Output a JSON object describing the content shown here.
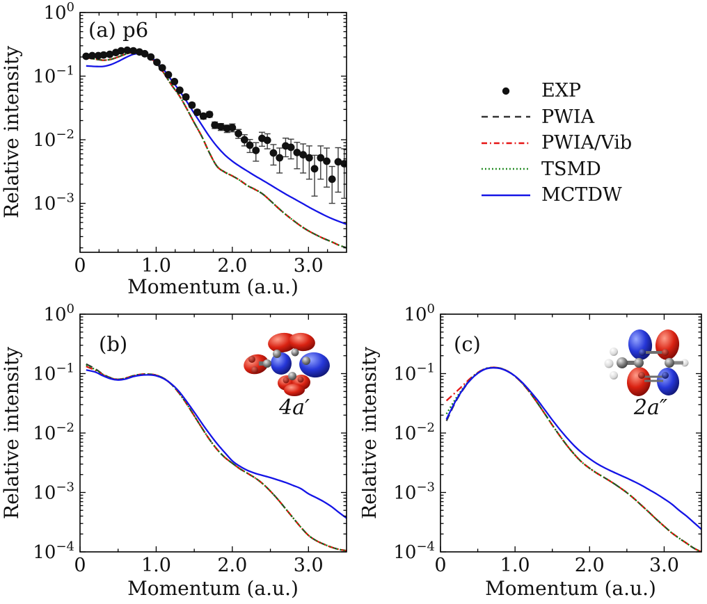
{
  "figure": {
    "background_color": "#ffffff",
    "legend": {
      "items": [
        {
          "label": "EXP",
          "marker": "circle",
          "color": "#111111"
        },
        {
          "label": "PWIA",
          "marker": "dashed",
          "color": "#333333"
        },
        {
          "label": "PWIA/Vib",
          "marker": "dashdot",
          "color": "#e61414"
        },
        {
          "label": "TSMD",
          "marker": "dotted",
          "color": "#128212"
        },
        {
          "label": "MCTDW",
          "marker": "solid",
          "color": "#1414e6"
        }
      ]
    }
  },
  "chart_data": [
    {
      "id": "a",
      "type": "line",
      "panel_label": "(a) p6",
      "xlabel": "Momentum (a.u.)",
      "ylabel": "Relative intensity",
      "xlim": [
        0,
        3.5
      ],
      "ylim": [
        0.00017,
        1.0
      ],
      "xticks": [
        0,
        1,
        2,
        3
      ],
      "xtick_labels": [
        "0",
        "1.0",
        "2.0",
        "3.0"
      ],
      "x_minor_step": 0.25,
      "ytick_exponents": [
        0,
        -1,
        -2,
        -3
      ],
      "grid": false,
      "theory_x": [
        0.08,
        0.2,
        0.3,
        0.4,
        0.5,
        0.6,
        0.7,
        0.8,
        0.9,
        1.0,
        1.1,
        1.2,
        1.3,
        1.4,
        1.5,
        1.6,
        1.7,
        1.8,
        1.9,
        2.0,
        2.1,
        2.2,
        2.3,
        2.4,
        2.5,
        2.6,
        2.7,
        2.8,
        2.9,
        3.0,
        3.1,
        3.2,
        3.3,
        3.4,
        3.5
      ],
      "series": [
        {
          "name": "PWIA",
          "style": "dashed",
          "color": "#333333",
          "y": [
            0.195,
            0.185,
            0.178,
            0.183,
            0.2,
            0.222,
            0.236,
            0.23,
            0.203,
            0.16,
            0.112,
            0.073,
            0.05,
            0.031,
            0.0185,
            0.0112,
            0.0062,
            0.0038,
            0.0031,
            0.0027,
            0.0023,
            0.0019,
            0.00165,
            0.0014,
            0.0011,
            0.00085,
            0.00067,
            0.00054,
            0.00044,
            0.00037,
            0.00032,
            0.00028,
            0.00025,
            0.00022,
            0.0002
          ]
        },
        {
          "name": "PWIA/Vib",
          "style": "dashdot",
          "color": "#e61414",
          "y": [
            0.195,
            0.185,
            0.178,
            0.183,
            0.2,
            0.222,
            0.236,
            0.23,
            0.203,
            0.16,
            0.112,
            0.073,
            0.05,
            0.031,
            0.0185,
            0.0112,
            0.0062,
            0.0038,
            0.0031,
            0.0027,
            0.0023,
            0.0019,
            0.00165,
            0.0014,
            0.0011,
            0.00085,
            0.00067,
            0.00054,
            0.00044,
            0.00037,
            0.00032,
            0.00028,
            0.00025,
            0.00022,
            0.0002
          ]
        },
        {
          "name": "TSMD",
          "style": "dotted",
          "color": "#128212",
          "y": [
            0.195,
            0.185,
            0.178,
            0.183,
            0.2,
            0.222,
            0.236,
            0.23,
            0.203,
            0.16,
            0.112,
            0.073,
            0.05,
            0.031,
            0.0185,
            0.0112,
            0.0062,
            0.0038,
            0.0031,
            0.0027,
            0.0023,
            0.0019,
            0.00165,
            0.0014,
            0.0011,
            0.00085,
            0.00067,
            0.00054,
            0.00044,
            0.00037,
            0.00032,
            0.00028,
            0.00025,
            0.00022,
            0.0002
          ]
        },
        {
          "name": "MCTDW",
          "style": "solid",
          "color": "#1414e6",
          "y": [
            0.145,
            0.142,
            0.142,
            0.151,
            0.17,
            0.196,
            0.22,
            0.228,
            0.208,
            0.17,
            0.126,
            0.087,
            0.06,
            0.04,
            0.026,
            0.017,
            0.0112,
            0.0078,
            0.0058,
            0.0046,
            0.0038,
            0.0032,
            0.0027,
            0.0023,
            0.00195,
            0.00165,
            0.0014,
            0.0012,
            0.00103,
            0.00088,
            0.00076,
            0.00066,
            0.00058,
            0.00052,
            0.00047
          ]
        },
        {
          "name": "EXP",
          "style": "scatter",
          "color": "#111111",
          "points": [
            [
              0.08,
              0.205,
              0.01
            ],
            [
              0.16,
              0.21,
              0.01
            ],
            [
              0.24,
              0.21,
              0.01
            ],
            [
              0.31,
              0.215,
              0.01
            ],
            [
              0.39,
              0.22,
              0.011
            ],
            [
              0.47,
              0.235,
              0.012
            ],
            [
              0.54,
              0.25,
              0.012
            ],
            [
              0.62,
              0.255,
              0.013
            ],
            [
              0.7,
              0.25,
              0.013
            ],
            [
              0.78,
              0.24,
              0.012
            ],
            [
              0.85,
              0.225,
              0.011
            ],
            [
              0.93,
              0.2,
              0.01
            ],
            [
              1.01,
              0.165,
              0.009
            ],
            [
              1.08,
              0.135,
              0.008
            ],
            [
              1.16,
              0.105,
              0.006
            ],
            [
              1.24,
              0.082,
              0.005
            ],
            [
              1.31,
              0.06,
              0.004
            ],
            [
              1.39,
              0.047,
              0.004
            ],
            [
              1.47,
              0.035,
              0.003
            ],
            [
              1.54,
              0.027,
              0.0025
            ],
            [
              1.62,
              0.0235,
              0.0024
            ],
            [
              1.7,
              0.025,
              0.0024
            ],
            [
              1.77,
              0.017,
              0.002
            ],
            [
              1.85,
              0.016,
              0.002
            ],
            [
              1.93,
              0.015,
              0.002
            ],
            [
              2.0,
              0.0155,
              0.0022
            ],
            [
              2.08,
              0.0125,
              0.002
            ],
            [
              2.16,
              0.01,
              0.002
            ],
            [
              2.23,
              0.0082,
              0.0019
            ],
            [
              2.31,
              0.0068,
              0.0022
            ],
            [
              2.39,
              0.0105,
              0.0026
            ],
            [
              2.46,
              0.0098,
              0.0026
            ],
            [
              2.54,
              0.0062,
              0.0022
            ],
            [
              2.62,
              0.0052,
              0.0022
            ],
            [
              2.7,
              0.008,
              0.0026
            ],
            [
              2.77,
              0.0076,
              0.0026
            ],
            [
              2.85,
              0.0063,
              0.0028
            ],
            [
              2.93,
              0.0058,
              0.0028
            ],
            [
              3.01,
              0.0052,
              0.0028
            ],
            [
              3.08,
              0.0035,
              0.0022
            ],
            [
              3.16,
              0.0052,
              0.0028
            ],
            [
              3.24,
              0.0046,
              0.0028
            ],
            [
              3.31,
              0.0024,
              0.0014
            ],
            [
              3.39,
              0.0045,
              0.003
            ],
            [
              3.47,
              0.0042,
              0.003
            ]
          ]
        }
      ]
    },
    {
      "id": "b",
      "type": "line",
      "panel_label": "(b)",
      "orbital_label": "4a′",
      "xlabel": "Momentum (a.u.)",
      "ylabel": "Relative intensity",
      "xlim": [
        0,
        3.5
      ],
      "ylim": [
        0.0001,
        1.0
      ],
      "xticks": [
        0,
        1,
        2,
        3
      ],
      "xtick_labels": [
        "0",
        "1.0",
        "2.0",
        "3.0"
      ],
      "x_minor_step": 0.5,
      "ytick_exponents": [
        0,
        -1,
        -2,
        -3,
        -4
      ],
      "grid": false,
      "theory_x": [
        0.08,
        0.2,
        0.3,
        0.4,
        0.5,
        0.6,
        0.7,
        0.8,
        0.9,
        1.0,
        1.1,
        1.2,
        1.3,
        1.4,
        1.5,
        1.6,
        1.7,
        1.8,
        1.9,
        2.0,
        2.1,
        2.2,
        2.3,
        2.4,
        2.5,
        2.6,
        2.7,
        2.8,
        2.9,
        3.0,
        3.1,
        3.2,
        3.3,
        3.4,
        3.5
      ],
      "series": [
        {
          "name": "PWIA",
          "style": "dashed",
          "color": "#333333",
          "y": [
            0.145,
            0.12,
            0.098,
            0.085,
            0.08,
            0.084,
            0.092,
            0.097,
            0.098,
            0.094,
            0.083,
            0.066,
            0.047,
            0.031,
            0.0195,
            0.0122,
            0.0078,
            0.0053,
            0.0039,
            0.0031,
            0.0025,
            0.0021,
            0.00175,
            0.0014,
            0.00105,
            0.00076,
            0.00053,
            0.00037,
            0.00026,
            0.00019,
            0.000155,
            0.000135,
            0.00012,
            0.00011,
            0.000105
          ]
        },
        {
          "name": "PWIA/Vib",
          "style": "dashdot",
          "color": "#e61414",
          "y": [
            0.132,
            0.114,
            0.096,
            0.084,
            0.08,
            0.084,
            0.092,
            0.097,
            0.098,
            0.094,
            0.083,
            0.066,
            0.047,
            0.031,
            0.0195,
            0.0122,
            0.0078,
            0.0053,
            0.0039,
            0.0031,
            0.0025,
            0.0021,
            0.00175,
            0.0014,
            0.00105,
            0.00076,
            0.00053,
            0.00037,
            0.00026,
            0.00019,
            0.000155,
            0.000135,
            0.00012,
            0.00011,
            0.000105
          ]
        },
        {
          "name": "TSMD",
          "style": "dotted",
          "color": "#128212",
          "y": [
            0.139,
            0.117,
            0.097,
            0.0845,
            0.08,
            0.084,
            0.092,
            0.097,
            0.098,
            0.094,
            0.083,
            0.066,
            0.047,
            0.031,
            0.0195,
            0.0122,
            0.0078,
            0.0053,
            0.0039,
            0.0031,
            0.0025,
            0.0021,
            0.00175,
            0.0014,
            0.00105,
            0.00076,
            0.00053,
            0.00037,
            0.00026,
            0.00019,
            0.000155,
            0.000135,
            0.00012,
            0.00011,
            0.000105
          ]
        },
        {
          "name": "MCTDW",
          "style": "solid",
          "color": "#1414e6",
          "y": [
            0.115,
            0.106,
            0.092,
            0.082,
            0.078,
            0.081,
            0.089,
            0.094,
            0.095,
            0.092,
            0.082,
            0.067,
            0.05,
            0.034,
            0.0225,
            0.0146,
            0.0097,
            0.0066,
            0.0047,
            0.0034,
            0.00275,
            0.00235,
            0.0021,
            0.00193,
            0.00178,
            0.00162,
            0.00147,
            0.00131,
            0.00116,
            0.00095,
            0.00082,
            0.0007,
            0.00058,
            0.00046,
            0.00037
          ]
        }
      ]
    },
    {
      "id": "c",
      "type": "line",
      "panel_label": "(c)",
      "orbital_label": "2a″",
      "xlabel": "Momentum (a.u.)",
      "ylabel": "Relative intensity",
      "xlim": [
        0,
        3.5
      ],
      "ylim": [
        0.0001,
        1.0
      ],
      "xticks": [
        0,
        1,
        2,
        3
      ],
      "xtick_labels": [
        "0",
        "1.0",
        "2.0",
        "3.0"
      ],
      "x_minor_step": 0.5,
      "ytick_exponents": [
        0,
        -1,
        -2,
        -3,
        -4
      ],
      "grid": false,
      "theory_x": [
        0.08,
        0.2,
        0.3,
        0.4,
        0.5,
        0.6,
        0.7,
        0.8,
        0.9,
        1.0,
        1.1,
        1.2,
        1.3,
        1.4,
        1.5,
        1.6,
        1.7,
        1.8,
        1.9,
        2.0,
        2.1,
        2.2,
        2.3,
        2.4,
        2.5,
        2.6,
        2.7,
        2.8,
        2.9,
        3.0,
        3.1,
        3.2,
        3.3,
        3.4,
        3.5
      ],
      "series": [
        {
          "name": "PWIA",
          "style": "dashed",
          "color": "#333333",
          "y": [
            0.016,
            0.033,
            0.053,
            0.078,
            0.102,
            0.12,
            0.126,
            0.123,
            0.11,
            0.09,
            0.068,
            0.048,
            0.032,
            0.021,
            0.0136,
            0.009,
            0.0061,
            0.0043,
            0.0032,
            0.00255,
            0.0021,
            0.00177,
            0.00148,
            0.00122,
            0.00099,
            0.00078,
            0.0006,
            0.00046,
            0.00035,
            0.00027,
            0.00021,
            0.00017,
            0.00014,
            0.000115,
            0.0001
          ]
        },
        {
          "name": "PWIA/Vib",
          "style": "dashdot",
          "color": "#e61414",
          "y": [
            0.035,
            0.048,
            0.063,
            0.083,
            0.104,
            0.121,
            0.127,
            0.123,
            0.11,
            0.09,
            0.068,
            0.048,
            0.032,
            0.021,
            0.0136,
            0.009,
            0.0061,
            0.0043,
            0.0032,
            0.00255,
            0.0021,
            0.00177,
            0.00148,
            0.00122,
            0.00099,
            0.00078,
            0.0006,
            0.00046,
            0.00035,
            0.00027,
            0.00021,
            0.00017,
            0.00014,
            0.000115,
            0.0001
          ]
        },
        {
          "name": "TSMD",
          "style": "dotted",
          "color": "#128212",
          "y": [
            0.021,
            0.037,
            0.056,
            0.08,
            0.103,
            0.1205,
            0.1265,
            0.123,
            0.11,
            0.09,
            0.068,
            0.048,
            0.032,
            0.021,
            0.0136,
            0.009,
            0.0061,
            0.0043,
            0.0032,
            0.00255,
            0.0021,
            0.00177,
            0.00148,
            0.00122,
            0.00099,
            0.00078,
            0.0006,
            0.00046,
            0.00035,
            0.00027,
            0.00021,
            0.00017,
            0.00014,
            0.000115,
            0.0001
          ]
        },
        {
          "name": "MCTDW",
          "style": "solid",
          "color": "#1414e6",
          "y": [
            0.017,
            0.034,
            0.054,
            0.078,
            0.101,
            0.119,
            0.125,
            0.122,
            0.109,
            0.091,
            0.07,
            0.051,
            0.036,
            0.0245,
            0.0166,
            0.0115,
            0.0082,
            0.006,
            0.0046,
            0.0037,
            0.00305,
            0.0026,
            0.00226,
            0.00198,
            0.00174,
            0.00152,
            0.00131,
            0.00111,
            0.00094,
            0.00078,
            0.00064,
            0.0005,
            0.0004,
            0.00031,
            0.00024
          ]
        }
      ]
    }
  ]
}
